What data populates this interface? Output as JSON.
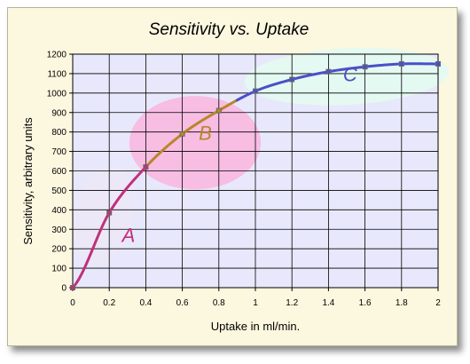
{
  "chart_data": {
    "type": "line",
    "title": "Sensitivity vs. Uptake",
    "xlabel": "Uptake in ml/min.",
    "ylabel": "Sensitivity, arbitrary units",
    "xlim": [
      0,
      2
    ],
    "ylim": [
      0,
      1200
    ],
    "xticks": [
      "0",
      "0.2",
      "0.4",
      "0.6",
      "0.8",
      "1",
      "1.2",
      "1.4",
      "1.6",
      "1.8",
      "2"
    ],
    "yticks": [
      "0",
      "100",
      "200",
      "300",
      "400",
      "500",
      "600",
      "700",
      "800",
      "900",
      "1000",
      "1100",
      "1200"
    ],
    "grid": true,
    "x": [
      0,
      0.2,
      0.4,
      0.6,
      0.8,
      1.0,
      1.2,
      1.4,
      1.6,
      1.8,
      2.0
    ],
    "y": [
      0,
      385,
      620,
      790,
      910,
      1010,
      1070,
      1110,
      1135,
      1150,
      1150
    ],
    "regions": [
      {
        "label": "A",
        "x_range": [
          0,
          0.4
        ],
        "color": "#c0307a",
        "fill": "#ece8f8"
      },
      {
        "label": "B",
        "x_range": [
          0.4,
          0.9
        ],
        "color": "#b8862a",
        "fill": "#f8b8e0"
      },
      {
        "label": "C",
        "x_range": [
          0.9,
          2.0
        ],
        "color": "#4a4fc8",
        "fill": "#e4faf0"
      }
    ],
    "colors": {
      "background": "#fcf7df",
      "plot_area": "#e8e8fc",
      "grid": "#000000",
      "marker": "#6a6a6a"
    }
  }
}
